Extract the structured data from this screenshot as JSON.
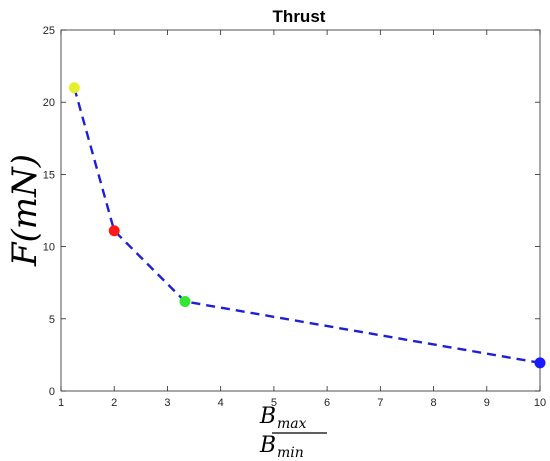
{
  "chart_data": {
    "type": "line",
    "title": "Thrust",
    "ylabel": "F(mN)",
    "xlabel": {
      "numerator": {
        "base": "B",
        "sub": "max"
      },
      "denominator": {
        "base": "B",
        "sub": "min"
      }
    },
    "xlim": [
      1,
      10
    ],
    "ylim": [
      0,
      25
    ],
    "xticks": [
      1,
      2,
      3,
      4,
      5,
      6,
      7,
      8,
      9,
      10
    ],
    "yticks": [
      0,
      5,
      10,
      15,
      20,
      25
    ],
    "grid": false,
    "line": {
      "style": "dashed",
      "color": "#1f1fd6"
    },
    "series": [
      {
        "x": [
          1.25,
          2.0,
          3.33,
          10.0
        ],
        "y": [
          21.0,
          11.1,
          6.2,
          1.95
        ],
        "marker_colors": [
          "#e6f02a",
          "#ff1a1a",
          "#33e633",
          "#1a1aff"
        ]
      }
    ]
  }
}
